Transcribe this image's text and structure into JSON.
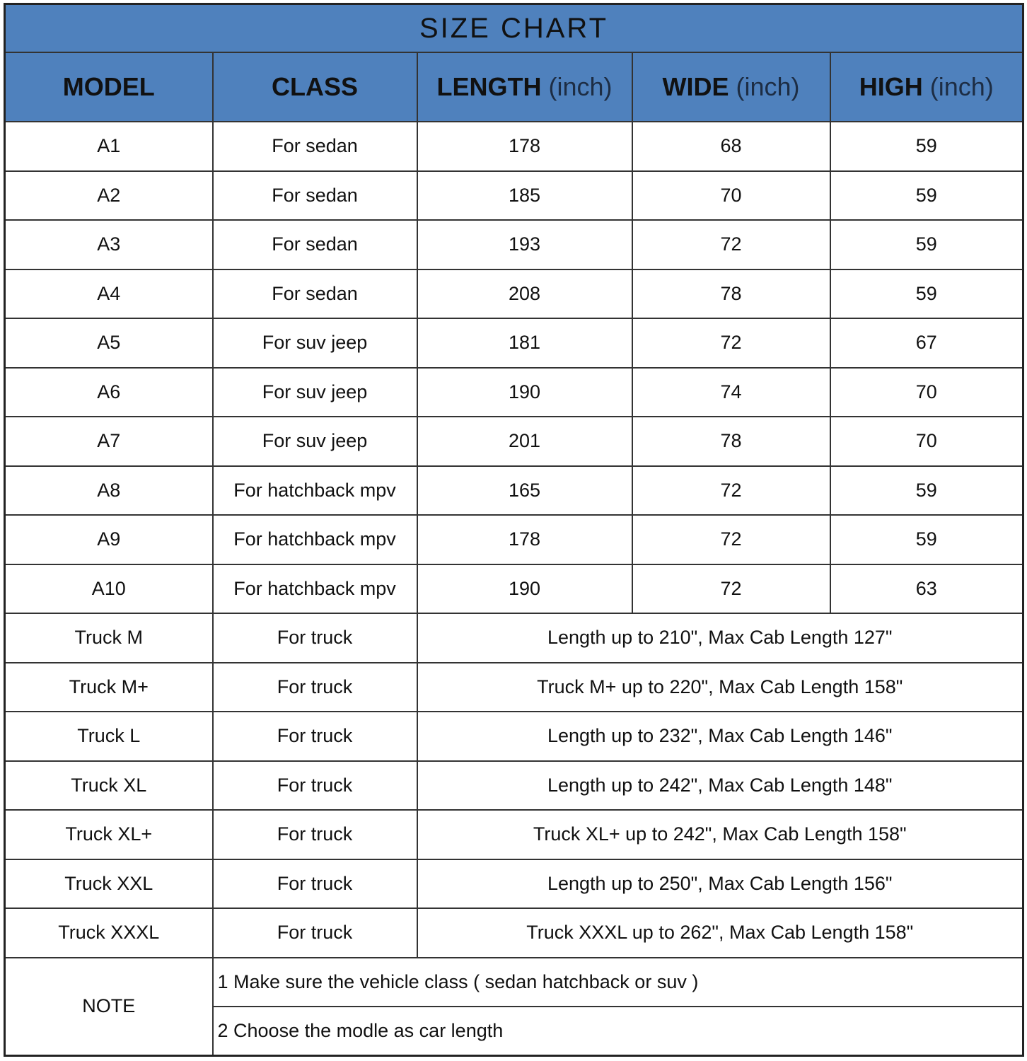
{
  "title": "SIZE CHART",
  "header_color": "#4f81bd",
  "columns": [
    {
      "label": "MODEL",
      "unit": ""
    },
    {
      "label": "CLASS",
      "unit": ""
    },
    {
      "label": "LENGTH",
      "unit": "(inch)"
    },
    {
      "label": "WIDE",
      "unit": "(inch)"
    },
    {
      "label": "HIGH",
      "unit": "(inch)"
    }
  ],
  "rows": [
    {
      "model": "A1",
      "class": "For sedan",
      "length": "178",
      "wide": "68",
      "high": "59"
    },
    {
      "model": "A2",
      "class": "For sedan",
      "length": "185",
      "wide": "70",
      "high": "59"
    },
    {
      "model": "A3",
      "class": "For sedan",
      "length": "193",
      "wide": "72",
      "high": "59"
    },
    {
      "model": "A4",
      "class": "For sedan",
      "length": "208",
      "wide": "78",
      "high": "59"
    },
    {
      "model": "A5",
      "class": "For suv jeep",
      "length": "181",
      "wide": "72",
      "high": "67"
    },
    {
      "model": "A6",
      "class": "For suv jeep",
      "length": "190",
      "wide": "74",
      "high": "70"
    },
    {
      "model": "A7",
      "class": "For suv jeep",
      "length": "201",
      "wide": "78",
      "high": "70"
    },
    {
      "model": "A8",
      "class": "For hatchback mpv",
      "length": "165",
      "wide": "72",
      "high": "59"
    },
    {
      "model": "A9",
      "class": "For hatchback mpv",
      "length": "178",
      "wide": "72",
      "high": "59"
    },
    {
      "model": "A10",
      "class": "For hatchback mpv",
      "length": "190",
      "wide": "72",
      "high": "63"
    }
  ],
  "truck_rows": [
    {
      "model": "Truck M",
      "class": "For truck",
      "desc": "Length up to 210\", Max Cab Length 127\""
    },
    {
      "model": "Truck M+",
      "class": "For truck",
      "desc": "Truck M+ up to 220\", Max Cab Length 158\""
    },
    {
      "model": "Truck L",
      "class": "For truck",
      "desc": "Length up to 232\", Max Cab Length 146\""
    },
    {
      "model": "Truck XL",
      "class": "For truck",
      "desc": "Length up to 242\", Max Cab Length 148\""
    },
    {
      "model": "Truck XL+",
      "class": "For truck",
      "desc": "Truck XL+ up to 242\", Max Cab Length 158\""
    },
    {
      "model": "Truck XXL",
      "class": "For truck",
      "desc": "Length up to 250\", Max Cab Length 156\""
    },
    {
      "model": "Truck XXXL",
      "class": "For truck",
      "desc": "Truck XXXL up to 262\", Max Cab Length 158\""
    }
  ],
  "note": {
    "label": "NOTE",
    "lines": [
      "1 Make sure the vehicle class ( sedan hatchback or suv )",
      "2 Choose the modle as car length"
    ]
  }
}
